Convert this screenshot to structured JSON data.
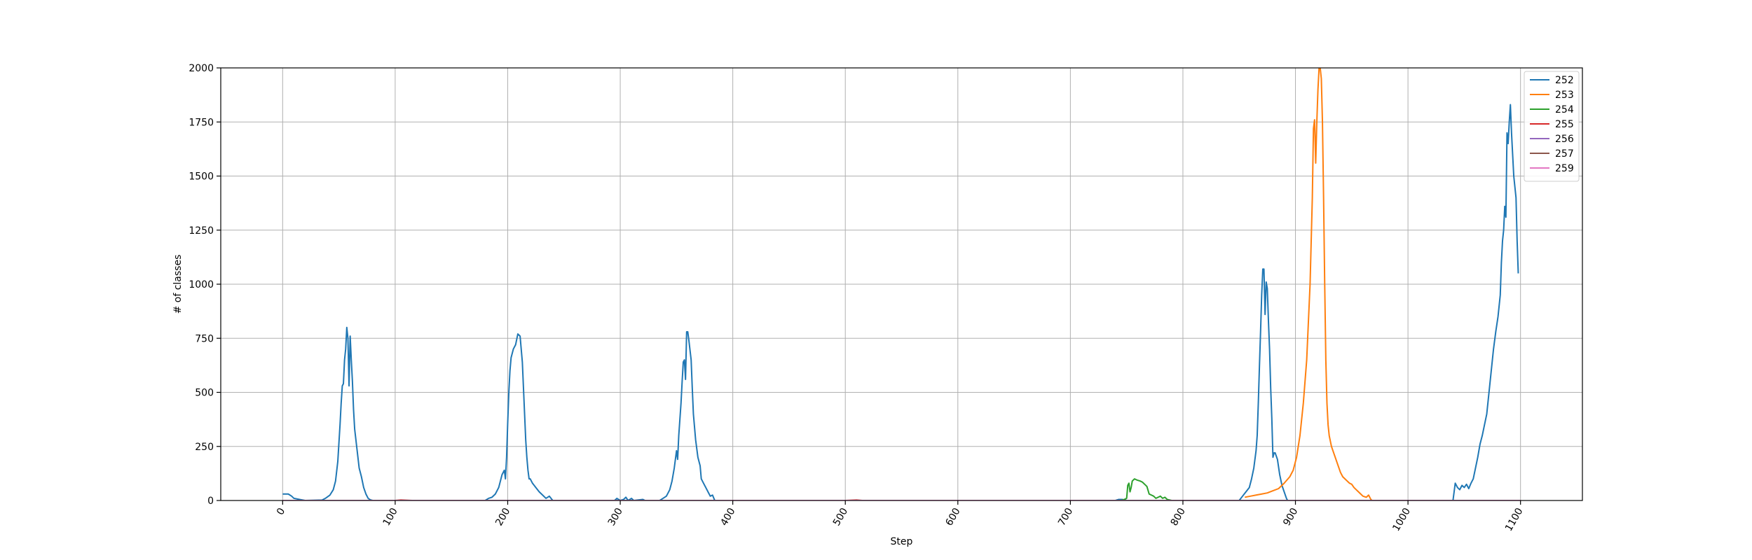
{
  "chart_data": {
    "type": "line",
    "title": "",
    "xlabel": "Step",
    "ylabel": "# of classes",
    "xlim": [
      -55,
      1155
    ],
    "ylim": [
      0,
      2000
    ],
    "xticks": [
      0,
      100,
      200,
      300,
      400,
      500,
      600,
      700,
      800,
      900,
      1000,
      1100
    ],
    "xtick_labels": [
      "0",
      "100",
      "200",
      "300",
      "400",
      "500",
      "600",
      "700",
      "800",
      "900",
      "1000",
      "1100"
    ],
    "xtick_rotation": -60,
    "yticks": [
      0,
      250,
      500,
      750,
      1000,
      1250,
      1500,
      1750,
      2000
    ],
    "ytick_labels": [
      "0",
      "250",
      "500",
      "750",
      "1000",
      "1250",
      "1500",
      "1750",
      "2000"
    ],
    "grid": true,
    "legend_position": "top-right",
    "series": [
      {
        "name": "252",
        "color": "#1f77b4",
        "points": [
          [
            0,
            30
          ],
          [
            5,
            30
          ],
          [
            8,
            20
          ],
          [
            10,
            10
          ],
          [
            15,
            5
          ],
          [
            20,
            0
          ],
          [
            35,
            2
          ],
          [
            38,
            10
          ],
          [
            42,
            25
          ],
          [
            45,
            50
          ],
          [
            47,
            90
          ],
          [
            49,
            180
          ],
          [
            51,
            350
          ],
          [
            52,
            450
          ],
          [
            53,
            530
          ],
          [
            54,
            540
          ],
          [
            55,
            650
          ],
          [
            56,
            700
          ],
          [
            57,
            800
          ],
          [
            58,
            750
          ],
          [
            59,
            530
          ],
          [
            60,
            760
          ],
          [
            61,
            650
          ],
          [
            62,
            550
          ],
          [
            63,
            420
          ],
          [
            64,
            330
          ],
          [
            66,
            240
          ],
          [
            68,
            150
          ],
          [
            70,
            110
          ],
          [
            72,
            60
          ],
          [
            74,
            30
          ],
          [
            76,
            10
          ],
          [
            78,
            3
          ],
          [
            80,
            0
          ],
          [
            180,
            0
          ],
          [
            183,
            10
          ],
          [
            186,
            15
          ],
          [
            189,
            30
          ],
          [
            192,
            60
          ],
          [
            195,
            120
          ],
          [
            197,
            140
          ],
          [
            198,
            100
          ],
          [
            199,
            200
          ],
          [
            200,
            360
          ],
          [
            201,
            500
          ],
          [
            202,
            600
          ],
          [
            203,
            660
          ],
          [
            205,
            700
          ],
          [
            207,
            720
          ],
          [
            209,
            770
          ],
          [
            211,
            760
          ],
          [
            212,
            700
          ],
          [
            213,
            640
          ],
          [
            214,
            520
          ],
          [
            215,
            400
          ],
          [
            216,
            280
          ],
          [
            217,
            200
          ],
          [
            218,
            140
          ],
          [
            219,
            100
          ],
          [
            220,
            100
          ],
          [
            222,
            80
          ],
          [
            225,
            60
          ],
          [
            228,
            40
          ],
          [
            231,
            25
          ],
          [
            234,
            10
          ],
          [
            237,
            20
          ],
          [
            240,
            0
          ],
          [
            295,
            0
          ],
          [
            297,
            10
          ],
          [
            300,
            0
          ],
          [
            303,
            5
          ],
          [
            305,
            15
          ],
          [
            307,
            0
          ],
          [
            310,
            10
          ],
          [
            312,
            0
          ],
          [
            320,
            5
          ],
          [
            322,
            0
          ],
          [
            335,
            0
          ],
          [
            338,
            10
          ],
          [
            341,
            20
          ],
          [
            344,
            50
          ],
          [
            346,
            90
          ],
          [
            348,
            150
          ],
          [
            350,
            230
          ],
          [
            351,
            190
          ],
          [
            352,
            300
          ],
          [
            354,
            450
          ],
          [
            355,
            550
          ],
          [
            356,
            640
          ],
          [
            357,
            650
          ],
          [
            358,
            560
          ],
          [
            359,
            780
          ],
          [
            360,
            780
          ],
          [
            361,
            740
          ],
          [
            363,
            650
          ],
          [
            364,
            520
          ],
          [
            365,
            400
          ],
          [
            367,
            280
          ],
          [
            369,
            200
          ],
          [
            371,
            160
          ],
          [
            372,
            100
          ],
          [
            374,
            80
          ],
          [
            376,
            60
          ],
          [
            378,
            40
          ],
          [
            380,
            20
          ],
          [
            382,
            25
          ],
          [
            384,
            0
          ],
          [
            740,
            0
          ],
          [
            743,
            5
          ],
          [
            746,
            5
          ],
          [
            750,
            0
          ],
          [
            790,
            0
          ],
          [
            850,
            0
          ],
          [
            853,
            20
          ],
          [
            856,
            40
          ],
          [
            859,
            60
          ],
          [
            861,
            100
          ],
          [
            863,
            150
          ],
          [
            865,
            230
          ],
          [
            866,
            300
          ],
          [
            867,
            450
          ],
          [
            868,
            620
          ],
          [
            869,
            780
          ],
          [
            870,
            950
          ],
          [
            871,
            1070
          ],
          [
            872,
            1070
          ],
          [
            873,
            860
          ],
          [
            874,
            1010
          ],
          [
            875,
            980
          ],
          [
            876,
            830
          ],
          [
            877,
            700
          ],
          [
            878,
            520
          ],
          [
            879,
            380
          ],
          [
            880,
            200
          ],
          [
            881,
            220
          ],
          [
            882,
            220
          ],
          [
            884,
            190
          ],
          [
            886,
            120
          ],
          [
            888,
            70
          ],
          [
            890,
            40
          ],
          [
            892,
            10
          ],
          [
            893,
            0
          ],
          [
            1040,
            0
          ],
          [
            1041,
            40
          ],
          [
            1042,
            80
          ],
          [
            1044,
            60
          ],
          [
            1046,
            50
          ],
          [
            1048,
            70
          ],
          [
            1050,
            60
          ],
          [
            1052,
            75
          ],
          [
            1054,
            55
          ],
          [
            1056,
            80
          ],
          [
            1058,
            100
          ],
          [
            1060,
            150
          ],
          [
            1062,
            200
          ],
          [
            1064,
            260
          ],
          [
            1066,
            300
          ],
          [
            1068,
            350
          ],
          [
            1070,
            400
          ],
          [
            1072,
            500
          ],
          [
            1074,
            600
          ],
          [
            1076,
            700
          ],
          [
            1078,
            780
          ],
          [
            1080,
            850
          ],
          [
            1082,
            950
          ],
          [
            1083,
            1100
          ],
          [
            1084,
            1200
          ],
          [
            1085,
            1250
          ],
          [
            1086,
            1360
          ],
          [
            1087,
            1310
          ],
          [
            1088,
            1700
          ],
          [
            1089,
            1650
          ],
          [
            1090,
            1750
          ],
          [
            1091,
            1830
          ],
          [
            1092,
            1700
          ],
          [
            1093,
            1600
          ],
          [
            1094,
            1500
          ],
          [
            1095,
            1450
          ],
          [
            1096,
            1400
          ],
          [
            1097,
            1200
          ],
          [
            1098,
            1050
          ]
        ]
      },
      {
        "name": "253",
        "color": "#ff7f0e",
        "points": [
          [
            855,
            15
          ],
          [
            860,
            20
          ],
          [
            865,
            25
          ],
          [
            870,
            30
          ],
          [
            875,
            35
          ],
          [
            880,
            45
          ],
          [
            885,
            55
          ],
          [
            890,
            80
          ],
          [
            895,
            110
          ],
          [
            898,
            140
          ],
          [
            901,
            200
          ],
          [
            904,
            300
          ],
          [
            907,
            450
          ],
          [
            910,
            650
          ],
          [
            913,
            1000
          ],
          [
            915,
            1400
          ],
          [
            916,
            1720
          ],
          [
            917,
            1760
          ],
          [
            918,
            1560
          ],
          [
            919,
            1750
          ],
          [
            920,
            1900
          ],
          [
            921,
            2000
          ],
          [
            922,
            2000
          ],
          [
            923,
            1950
          ],
          [
            924,
            1750
          ],
          [
            925,
            1400
          ],
          [
            926,
            1000
          ],
          [
            927,
            650
          ],
          [
            928,
            450
          ],
          [
            929,
            350
          ],
          [
            930,
            300
          ],
          [
            932,
            250
          ],
          [
            934,
            220
          ],
          [
            936,
            190
          ],
          [
            938,
            160
          ],
          [
            940,
            130
          ],
          [
            942,
            110
          ],
          [
            944,
            100
          ],
          [
            946,
            90
          ],
          [
            948,
            80
          ],
          [
            950,
            75
          ],
          [
            952,
            60
          ],
          [
            954,
            50
          ],
          [
            956,
            40
          ],
          [
            958,
            30
          ],
          [
            960,
            20
          ],
          [
            963,
            15
          ],
          [
            965,
            25
          ],
          [
            967,
            5
          ],
          [
            968,
            0
          ]
        ]
      },
      {
        "name": "254",
        "color": "#2ca02c",
        "points": [
          [
            745,
            0
          ],
          [
            748,
            5
          ],
          [
            750,
            10
          ],
          [
            751,
            70
          ],
          [
            752,
            80
          ],
          [
            753,
            40
          ],
          [
            754,
            60
          ],
          [
            755,
            90
          ],
          [
            757,
            100
          ],
          [
            759,
            95
          ],
          [
            762,
            90
          ],
          [
            764,
            85
          ],
          [
            766,
            75
          ],
          [
            768,
            65
          ],
          [
            770,
            30
          ],
          [
            772,
            25
          ],
          [
            774,
            20
          ],
          [
            776,
            10
          ],
          [
            778,
            15
          ],
          [
            780,
            20
          ],
          [
            782,
            10
          ],
          [
            784,
            15
          ],
          [
            786,
            5
          ],
          [
            790,
            0
          ]
        ]
      },
      {
        "name": "255",
        "color": "#d62728",
        "points": [
          [
            0,
            0
          ],
          [
            100,
            0
          ],
          [
            105,
            2
          ],
          [
            115,
            0
          ],
          [
            300,
            0
          ],
          [
            500,
            0
          ],
          [
            510,
            2
          ],
          [
            515,
            0
          ],
          [
            1000,
            0
          ],
          [
            1100,
            0
          ]
        ]
      },
      {
        "name": "256",
        "color": "#9467bd",
        "points": [
          [
            0,
            0
          ],
          [
            1100,
            0
          ]
        ]
      },
      {
        "name": "257",
        "color": "#8c564b",
        "points": [
          [
            0,
            0
          ],
          [
            1100,
            0
          ]
        ]
      },
      {
        "name": "259",
        "color": "#e377c2",
        "points": [
          [
            0,
            0
          ],
          [
            1100,
            0
          ]
        ]
      }
    ]
  }
}
